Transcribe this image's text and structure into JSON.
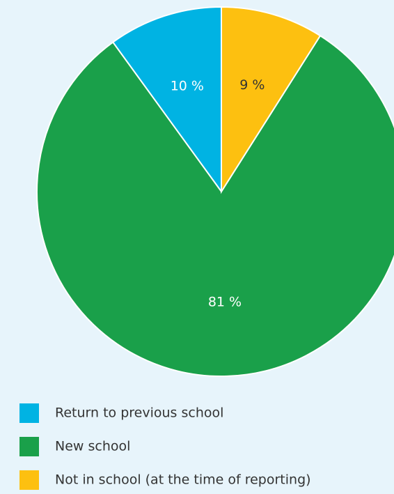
{
  "chart_data": {
    "type": "pie",
    "series": [
      {
        "name": "Return to previous school",
        "color": "#00b3e3",
        "label_color": "#ffffff",
        "values": [
          10
        ],
        "value_labels": [
          "10 %"
        ]
      },
      {
        "name": "New school",
        "color": "#1aa04a",
        "label_color": "#ffffff",
        "values": [
          81
        ],
        "value_labels": [
          "81 %"
        ]
      },
      {
        "name": "Not in school (at the time of reporting)",
        "color": "#fdc010",
        "label_color": "#333333",
        "values": [
          9
        ],
        "value_labels": [
          "9 %"
        ]
      }
    ]
  }
}
